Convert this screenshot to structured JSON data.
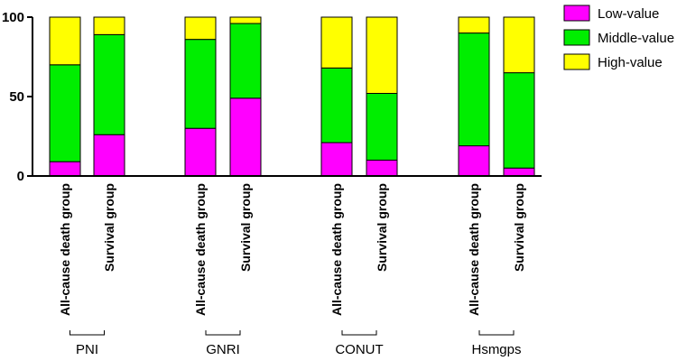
{
  "chart_data": {
    "type": "bar",
    "stacked": true,
    "title": "",
    "xlabel": "",
    "ylabel": "",
    "ylim": [
      0,
      100
    ],
    "yticks": [
      0,
      50,
      100
    ],
    "groups": [
      {
        "label": "PNI",
        "categories": [
          "All-cause death group",
          "Survival group"
        ]
      },
      {
        "label": "GNRI",
        "categories": [
          "All-cause death group",
          "Survival group"
        ]
      },
      {
        "label": "CONUT",
        "categories": [
          "All-cause death group",
          "Survival group"
        ]
      },
      {
        "label": "Hsmgps",
        "categories": [
          "All-cause death group",
          "Survival group"
        ]
      }
    ],
    "series": [
      {
        "name": "Low-value",
        "color": "#ff00ff",
        "values": [
          9,
          26,
          30,
          49,
          21,
          10,
          19,
          5
        ]
      },
      {
        "name": "Middle-value",
        "color": "#00ee00",
        "values": [
          61,
          63,
          56,
          47,
          47,
          42,
          71,
          60
        ]
      },
      {
        "name": "High-value",
        "color": "#ffff00",
        "values": [
          30,
          11,
          14,
          4,
          32,
          48,
          10,
          35
        ]
      }
    ],
    "legend_position": "top-right"
  }
}
